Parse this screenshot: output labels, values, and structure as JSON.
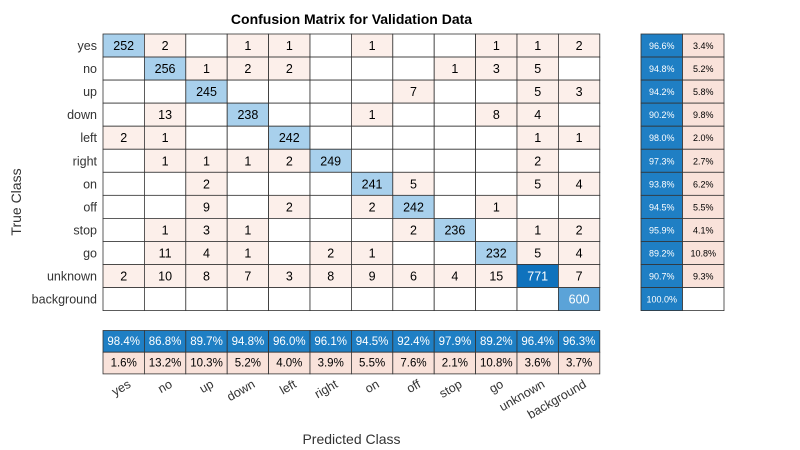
{
  "chart_data": {
    "type": "heatmap",
    "title": "Confusion Matrix for Validation Data",
    "xlabel": "Predicted Class",
    "ylabel": "True Class",
    "classes": [
      "yes",
      "no",
      "up",
      "down",
      "left",
      "right",
      "on",
      "off",
      "stop",
      "go",
      "unknown",
      "background"
    ],
    "matrix": [
      [
        252,
        2,
        null,
        1,
        1,
        null,
        1,
        null,
        null,
        1,
        1,
        2
      ],
      [
        null,
        256,
        1,
        2,
        2,
        null,
        null,
        null,
        1,
        3,
        5,
        null
      ],
      [
        null,
        null,
        245,
        null,
        null,
        null,
        null,
        7,
        null,
        null,
        5,
        3
      ],
      [
        null,
        13,
        null,
        238,
        null,
        null,
        1,
        null,
        null,
        8,
        4,
        null
      ],
      [
        2,
        1,
        null,
        null,
        242,
        null,
        null,
        null,
        null,
        null,
        1,
        1
      ],
      [
        null,
        1,
        1,
        1,
        2,
        249,
        null,
        null,
        null,
        null,
        2,
        null
      ],
      [
        null,
        null,
        2,
        null,
        null,
        null,
        241,
        5,
        null,
        null,
        5,
        4
      ],
      [
        null,
        null,
        9,
        null,
        2,
        null,
        2,
        242,
        null,
        1,
        null,
        null
      ],
      [
        null,
        1,
        3,
        1,
        null,
        null,
        null,
        2,
        236,
        null,
        1,
        2
      ],
      [
        null,
        11,
        4,
        1,
        null,
        2,
        1,
        null,
        null,
        232,
        5,
        4
      ],
      [
        2,
        10,
        8,
        7,
        3,
        8,
        9,
        6,
        4,
        15,
        771,
        7
      ],
      [
        null,
        null,
        null,
        null,
        null,
        null,
        null,
        null,
        null,
        null,
        null,
        600
      ]
    ],
    "row_summary": {
      "correct": [
        "96.6%",
        "94.8%",
        "94.2%",
        "90.2%",
        "98.0%",
        "97.3%",
        "93.8%",
        "94.5%",
        "95.9%",
        "89.2%",
        "90.7%",
        "100.0%"
      ],
      "incorrect": [
        "3.4%",
        "5.2%",
        "5.8%",
        "9.8%",
        "2.0%",
        "2.7%",
        "6.2%",
        "5.5%",
        "4.1%",
        "10.8%",
        "9.3%",
        ""
      ]
    },
    "column_summary": {
      "correct": [
        "98.4%",
        "86.8%",
        "89.7%",
        "94.8%",
        "96.0%",
        "96.1%",
        "94.5%",
        "92.4%",
        "97.9%",
        "89.2%",
        "96.4%",
        "96.3%"
      ],
      "incorrect": [
        "1.6%",
        "13.2%",
        "10.3%",
        "5.2%",
        "4.0%",
        "3.9%",
        "5.5%",
        "7.6%",
        "2.1%",
        "10.8%",
        "3.6%",
        "3.7%"
      ]
    },
    "colors": {
      "diag_light": "#a8d0ec",
      "diag_mid": "#5ba3d8",
      "diag_dark": "#0f72bd",
      "offdiag": "#fcefea",
      "summary_blue": "#1f7fc4",
      "summary_pink": "#f9e2da",
      "grid": "#333333"
    }
  }
}
